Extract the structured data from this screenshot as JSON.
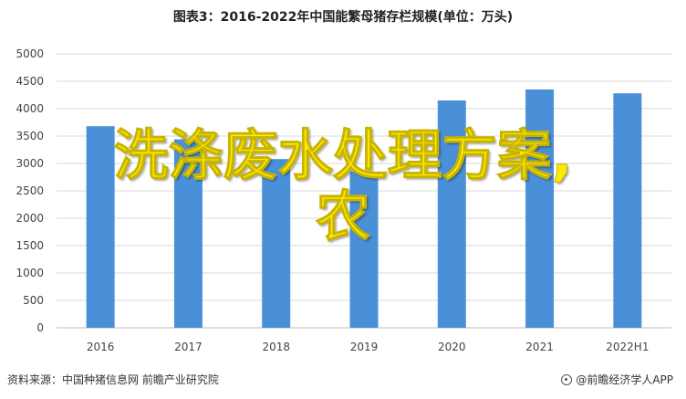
{
  "title": "图表3：2016-2022年中国能繁母猪存栏规模(单位：万头)",
  "overlay": {
    "line1": "洗涤废水处理方案,",
    "line2": "农"
  },
  "footer": {
    "source": "资料来源：中国种猪信息网 前瞻产业研究院",
    "brand": "@前瞻经济学人APP"
  },
  "colors": {
    "bar": "#4a90d9",
    "grid": "#d9d9d9",
    "overlay_text": "#ffeb00"
  },
  "chart_data": {
    "type": "bar",
    "title": "图表3：2016-2022年中国能繁母猪存栏规模(单位：万头)",
    "categories": [
      "2016",
      "2017",
      "2018",
      "2019",
      "2020",
      "2021",
      "2022H1"
    ],
    "values": [
      3680,
      3440,
      3080,
      2850,
      4150,
      4350,
      4280
    ],
    "yticks": [
      "0",
      "500",
      "1000",
      "1500",
      "2000",
      "2500",
      "3000",
      "3500",
      "4000",
      "4500",
      "5000"
    ],
    "ylim": [
      0,
      5000
    ],
    "xlabel": "",
    "ylabel": "",
    "grid": true,
    "legend": "none"
  }
}
